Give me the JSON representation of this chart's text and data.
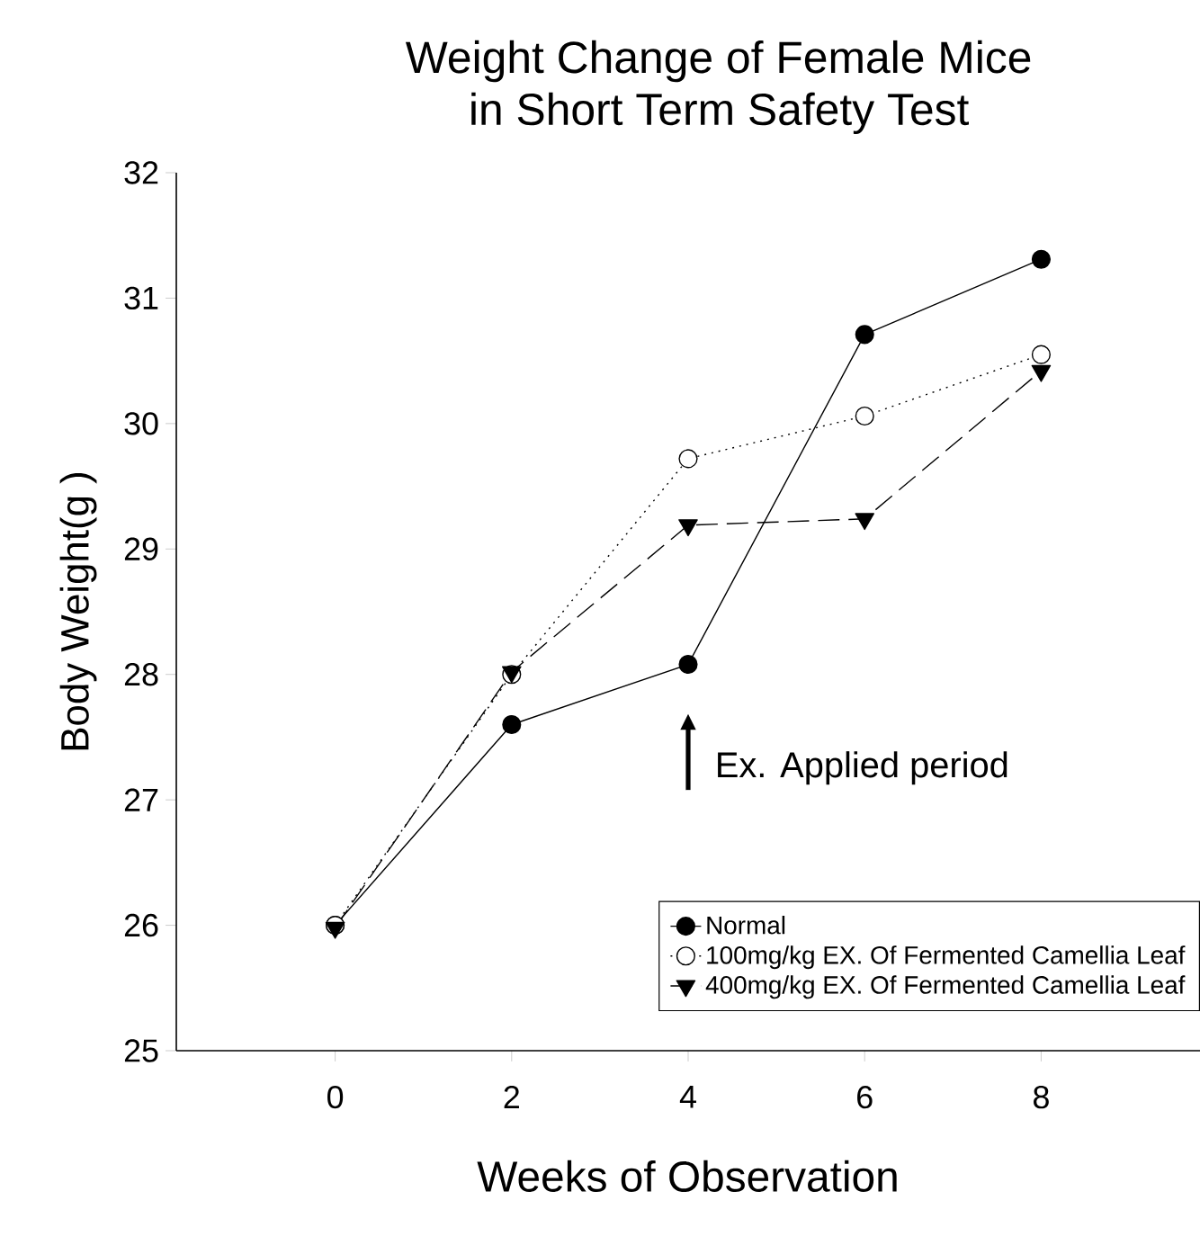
{
  "chart_data": {
    "type": "line",
    "title": "Weight Change of Female Mice\nin Short Term Safety Test",
    "xlabel": "Weeks of Observation",
    "ylabel": "Body  Weight(g  )",
    "x": [
      0,
      2,
      4,
      6,
      8
    ],
    "series": [
      {
        "name": "Normal",
        "color": "#000000",
        "marker": "circle",
        "line_style": "solid",
        "values": [
          26.0,
          27.6,
          28.08,
          30.71,
          31.31
        ]
      },
      {
        "name": "100mg/kg EX. Of Fermented Camellia Leaf",
        "color": "#ffffff",
        "marker": "circle",
        "line_style": "dotted",
        "values": [
          26.0,
          28.0,
          29.72,
          30.06,
          30.55
        ]
      },
      {
        "name": "400mg/kg EX. Of Fermented Camellia Leaf",
        "color": "#000000",
        "marker": "triangle",
        "line_style": "dashed",
        "values": [
          25.98,
          28.02,
          29.19,
          29.24,
          30.42
        ]
      }
    ],
    "annotations": [
      "Ex. Applied period"
    ],
    "xlim": [
      -1.8,
      9.8
    ],
    "ylim": [
      25,
      32
    ],
    "xticks": [
      0,
      2,
      4,
      6,
      8
    ],
    "yticks": [
      25,
      26,
      27,
      28,
      29,
      30,
      31,
      32
    ],
    "legend": "bottom right",
    "grid": false
  }
}
